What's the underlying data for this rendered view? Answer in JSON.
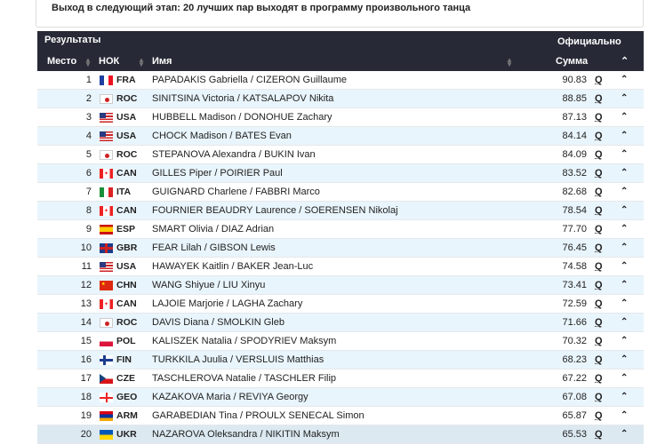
{
  "notice": "Выход в следующий этап: 20 лучших пар выходят в программу произвольного танца",
  "header": {
    "title": "Результаты",
    "status": "Официально",
    "col_place": "Место",
    "col_noc": "НОК",
    "col_name": "Имя",
    "col_total": "Сумма",
    "collapse_icon": "chevron-up-icon"
  },
  "rows": [
    {
      "place": "1",
      "noc": "FRA",
      "name": "PAPADAKIS Gabriella / CIZERON Guillaume",
      "total": "90.83",
      "q": "Q"
    },
    {
      "place": "2",
      "noc": "ROC",
      "name": "SINITSINA Victoria / KATSALAPOV Nikita",
      "total": "88.85",
      "q": "Q"
    },
    {
      "place": "3",
      "noc": "USA",
      "name": "HUBBELL Madison / DONOHUE Zachary",
      "total": "87.13",
      "q": "Q"
    },
    {
      "place": "4",
      "noc": "USA",
      "name": "CHOCK Madison / BATES Evan",
      "total": "84.14",
      "q": "Q"
    },
    {
      "place": "5",
      "noc": "ROC",
      "name": "STEPANOVA Alexandra / BUKIN Ivan",
      "total": "84.09",
      "q": "Q"
    },
    {
      "place": "6",
      "noc": "CAN",
      "name": "GILLES Piper / POIRIER Paul",
      "total": "83.52",
      "q": "Q"
    },
    {
      "place": "7",
      "noc": "ITA",
      "name": "GUIGNARD Charlene / FABBRI Marco",
      "total": "82.68",
      "q": "Q"
    },
    {
      "place": "8",
      "noc": "CAN",
      "name": "FOURNIER BEAUDRY Laurence / SOERENSEN Nikolaj",
      "total": "78.54",
      "q": "Q"
    },
    {
      "place": "9",
      "noc": "ESP",
      "name": "SMART Olivia / DIAZ Adrian",
      "total": "77.70",
      "q": "Q"
    },
    {
      "place": "10",
      "noc": "GBR",
      "name": "FEAR Lilah / GIBSON Lewis",
      "total": "76.45",
      "q": "Q"
    },
    {
      "place": "11",
      "noc": "USA",
      "name": "HAWAYEK Kaitlin / BAKER Jean-Luc",
      "total": "74.58",
      "q": "Q"
    },
    {
      "place": "12",
      "noc": "CHN",
      "name": "WANG Shiyue / LIU Xinyu",
      "total": "73.41",
      "q": "Q"
    },
    {
      "place": "13",
      "noc": "CAN",
      "name": "LAJOIE Marjorie / LAGHA Zachary",
      "total": "72.59",
      "q": "Q"
    },
    {
      "place": "14",
      "noc": "ROC",
      "name": "DAVIS Diana / SMOLKIN Gleb",
      "total": "71.66",
      "q": "Q"
    },
    {
      "place": "15",
      "noc": "POL",
      "name": "KALISZEK Natalia / SPODYRIEV Maksym",
      "total": "70.32",
      "q": "Q"
    },
    {
      "place": "16",
      "noc": "FIN",
      "name": "TURKKILA Juulia / VERSLUIS Matthias",
      "total": "68.23",
      "q": "Q"
    },
    {
      "place": "17",
      "noc": "CZE",
      "name": "TASCHLEROVA Natalie / TASCHLER Filip",
      "total": "67.22",
      "q": "Q"
    },
    {
      "place": "18",
      "noc": "GEO",
      "name": "KAZAKOVA Maria / REVIYA Georgy",
      "total": "67.08",
      "q": "Q"
    },
    {
      "place": "19",
      "noc": "ARM",
      "name": "GARABEDIAN Tina / PROULX SENECAL Simon",
      "total": "65.87",
      "q": "Q"
    },
    {
      "place": "20",
      "noc": "UKR",
      "name": "NAZAROVA Oleksandra / NIKITIN Maksym",
      "total": "65.53",
      "q": "Q"
    }
  ]
}
